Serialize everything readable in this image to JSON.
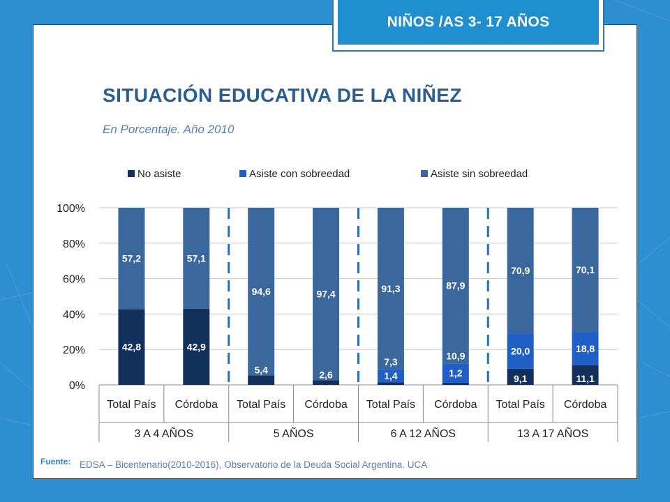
{
  "header": {
    "badge": "NIÑOS /AS 3- 17 AÑOS"
  },
  "title": "SITUACIÓN EDUCATIVA DE LA NIÑEZ",
  "subtitle": "En Porcentaje. Año 2010",
  "source": {
    "label": "Fuente:",
    "text": "EDSA – Bicentenario(2010-2016), Observatorio de la Deuda Social Argentina. UCA"
  },
  "colors": {
    "no_asiste": "#13305c",
    "sobreedad": "#1f5fc6",
    "sin_sobreedad": "#3b689c",
    "background": "#2d8ed0",
    "title": "#2a5d90",
    "divider": "#2a6fad"
  },
  "chart_data": {
    "type": "bar",
    "stacked": true,
    "categories": [
      "Total País",
      "Córdoba",
      "Total País",
      "Córdoba",
      "Total País",
      "Córdoba",
      "Total País",
      "Córdoba"
    ],
    "groups": [
      {
        "label": "3 A 4 AÑOS",
        "size": 2
      },
      {
        "label": "5 AÑOS",
        "size": 2
      },
      {
        "label": "6 A 12 AÑOS",
        "size": 2
      },
      {
        "label": "13 A 17 AÑOS",
        "size": 2
      }
    ],
    "series": [
      {
        "name": "No asiste",
        "values": [
          42.8,
          42.9,
          5.4,
          2.6,
          1.4,
          1.2,
          9.1,
          11.1
        ],
        "labels": [
          "42,8",
          "42,9",
          "5,4",
          "2,6",
          "1,4",
          "1,2",
          "9,1",
          "11,1"
        ]
      },
      {
        "name": "Asiste con sobreedad",
        "values": [
          0,
          0,
          0,
          0,
          7.3,
          10.9,
          20.0,
          18.8
        ],
        "labels": [
          "",
          "",
          "",
          "",
          "7,3",
          "10,9",
          "20,0",
          "18,8"
        ]
      },
      {
        "name": "Asiste sin sobreedad",
        "values": [
          57.2,
          57.1,
          94.6,
          97.4,
          91.3,
          87.9,
          70.9,
          70.1
        ],
        "labels": [
          "57,2",
          "57,1",
          "94,6",
          "97,4",
          "91,3",
          "87,9",
          "70,9",
          "70,1"
        ]
      }
    ],
    "y_ticks": [
      "0%",
      "20%",
      "40%",
      "60%",
      "80%",
      "100%"
    ],
    "ylim": [
      0,
      100
    ],
    "grid": true,
    "legend": "top"
  }
}
